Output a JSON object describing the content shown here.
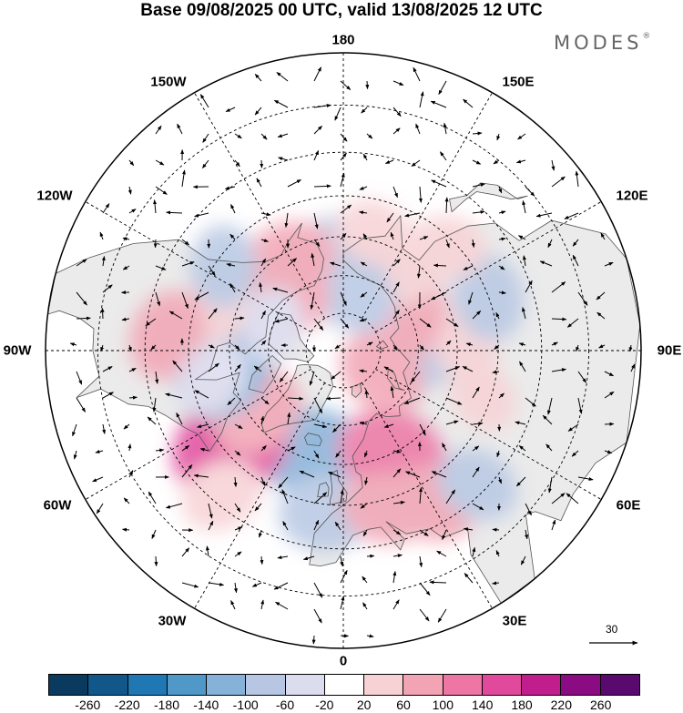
{
  "title": "Base 09/08/2025 00 UTC, valid 13/08/2025 12 UTC",
  "brand": {
    "name": "MODES",
    "mark": "®"
  },
  "map": {
    "projection": "north polar stereographic",
    "longitude_labels": [
      "180",
      "150E",
      "120E",
      "90E",
      "60E",
      "30E",
      "0",
      "30W",
      "60W",
      "90W",
      "120W",
      "150W"
    ],
    "vector_reference": "30",
    "colors": {
      "ocean": "#ffffff",
      "land": "#ebebeb",
      "coast": "#555555",
      "grid": "#000000"
    }
  },
  "legend": {
    "ticks": [
      "-260",
      "-220",
      "-180",
      "-140",
      "-100",
      "-60",
      "-20",
      "20",
      "60",
      "100",
      "140",
      "180",
      "220",
      "260"
    ],
    "colors": [
      "#0a3a5e",
      "#11578a",
      "#1f77b4",
      "#4f98c8",
      "#86b1d8",
      "#b7c7e3",
      "#dcdcef",
      "#ffffff",
      "#f7d2d5",
      "#f2a4b4",
      "#ed76a4",
      "#e14a9c",
      "#c01d8d",
      "#8b0b82",
      "#5a0a6e"
    ]
  },
  "anomaly_blobs": [
    {
      "lat": 62,
      "lon": -18,
      "v": -110
    },
    {
      "lat": 48,
      "lon": -6,
      "v": -90
    },
    {
      "lat": 60,
      "lon": 25,
      "v": 120
    },
    {
      "lat": 48,
      "lon": 15,
      "v": 70
    },
    {
      "lat": 52,
      "lon": -50,
      "v": 160
    },
    {
      "lat": 62,
      "lon": -55,
      "v": 90
    },
    {
      "lat": 58,
      "lon": -82,
      "v": -130
    },
    {
      "lat": 70,
      "lon": 95,
      "v": -80
    },
    {
      "lat": 58,
      "lon": 95,
      "v": 60
    },
    {
      "lat": 52,
      "lon": 72,
      "v": 40
    },
    {
      "lat": 78,
      "lon": 60,
      "v": 80
    },
    {
      "lat": 70,
      "lon": 123,
      "v": 90
    },
    {
      "lat": 65,
      "lon": 145,
      "v": 50
    },
    {
      "lat": 65,
      "lon": 180,
      "v": -80
    },
    {
      "lat": 75,
      "lon": 170,
      "v": -70
    },
    {
      "lat": 58,
      "lon": 165,
      "v": 50
    },
    {
      "lat": 62,
      "lon": -150,
      "v": 80
    },
    {
      "lat": 68,
      "lon": -130,
      "v": 100
    },
    {
      "lat": 55,
      "lon": -112,
      "v": 60
    },
    {
      "lat": 52,
      "lon": -125,
      "v": -60
    },
    {
      "lat": 45,
      "lon": -95,
      "v": 80
    },
    {
      "lat": 70,
      "lon": -110,
      "v": -40
    },
    {
      "lat": 45,
      "lon": 30,
      "v": 80
    },
    {
      "lat": 42,
      "lon": 45,
      "v": -60
    },
    {
      "lat": 50,
      "lon": 110,
      "v": -70
    },
    {
      "lat": 52,
      "lon": 135,
      "v": 50
    },
    {
      "lat": 55,
      "lon": -78,
      "v": -50
    },
    {
      "lat": 42,
      "lon": -40,
      "v": 60
    }
  ]
}
